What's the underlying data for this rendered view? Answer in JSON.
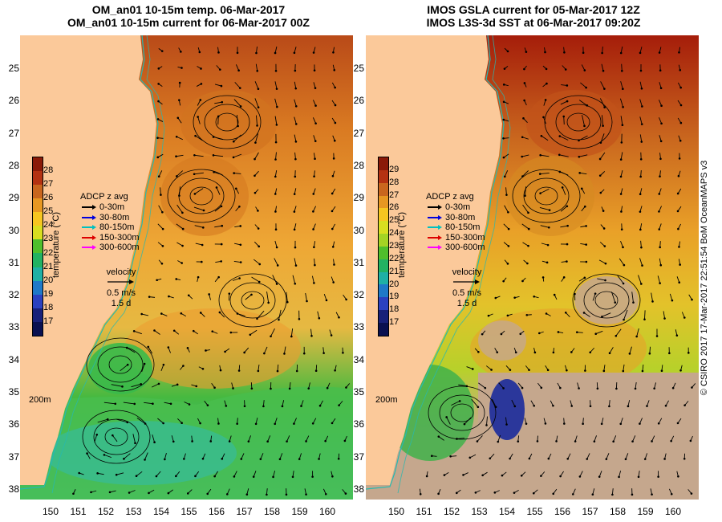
{
  "titles": {
    "left": {
      "line1": "OM_an01 10-15m temp. 06-Mar-2017",
      "line2": "OM_an01 10-15m current for 06-Mar-2017 00Z"
    },
    "right": {
      "line1": "IMOS GSLA current for 05-Mar-2017 12Z",
      "line2": "IMOS L3S-3d SST at 06-Mar-2017 09:20Z"
    }
  },
  "axes": {
    "lat_labels": [
      "25",
      "26",
      "27",
      "28",
      "29",
      "30",
      "31",
      "32",
      "33",
      "34",
      "35",
      "36",
      "37",
      "38"
    ],
    "lon_labels": [
      "150",
      "151",
      "152",
      "153",
      "154",
      "155",
      "156",
      "157",
      "158",
      "159",
      "160"
    ]
  },
  "legends": {
    "left": {
      "ticks": [
        "28",
        "27",
        "26",
        "25",
        "24",
        "23",
        "22",
        "21",
        "20",
        "19",
        "18",
        "17"
      ]
    },
    "right": {
      "ticks": [
        "29",
        "28",
        "27",
        "26",
        "25",
        "24",
        "23",
        "22",
        "21",
        "20",
        "19",
        "18",
        "17"
      ]
    },
    "cbar_title": "temperature (°C)",
    "adcp_title": "ADCP z avg",
    "adcp_rows": [
      {
        "label": "0-30m",
        "color": "#000000"
      },
      {
        "label": "30-80m",
        "color": "#0000dd"
      },
      {
        "label": "80-150m",
        "color": "#00c0c0"
      },
      {
        "label": "150-300m",
        "color": "#dd0000"
      },
      {
        "label": "300-600m",
        "color": "#ff00ff"
      }
    ],
    "velocity": {
      "label": "velocity",
      "speed": "0.5 m/s",
      "duration": "1.5 d"
    }
  },
  "depth_label": "200m",
  "copyright": "© CSIRO 2017   17-Mar-2017 22:51:54 BoM OceanMAPS v3",
  "colors": {
    "land": "#fbc99a",
    "coast": "#26b9b1",
    "cloud": "#c5a78d"
  }
}
